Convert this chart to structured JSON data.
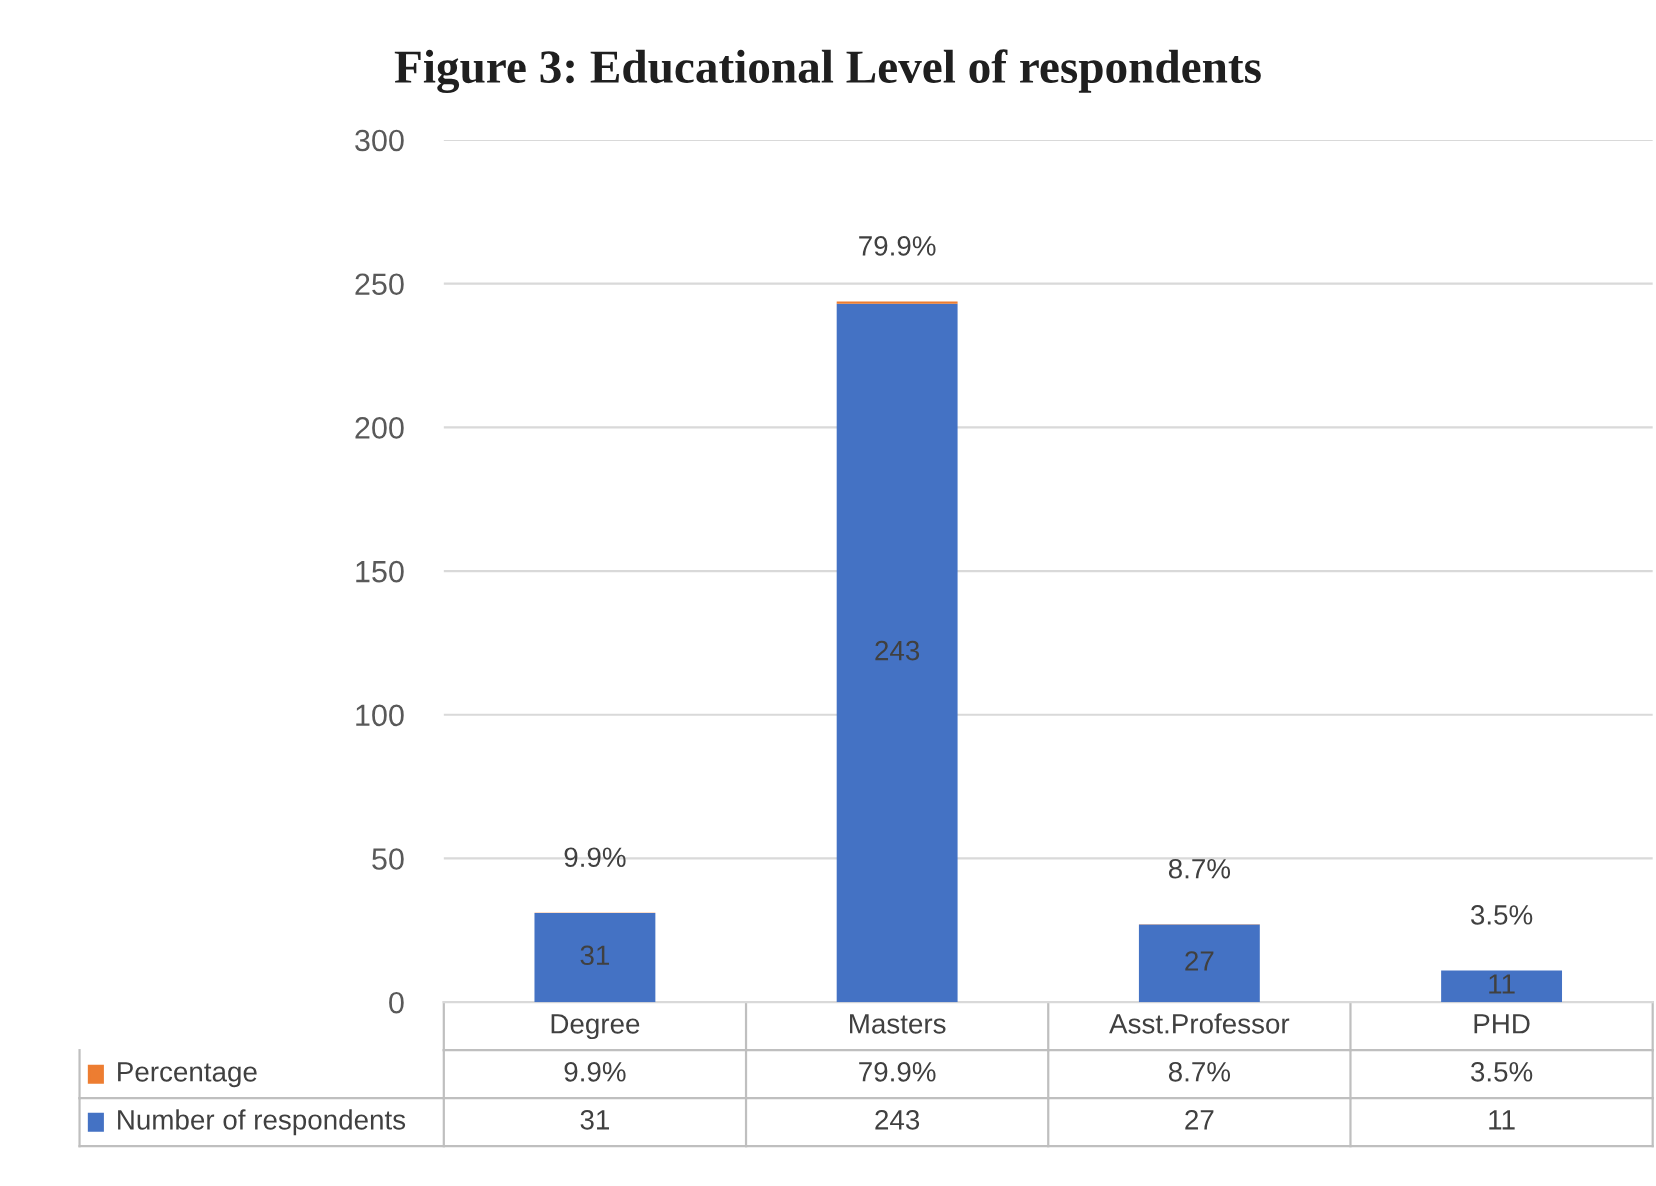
{
  "chart_data": {
    "type": "bar",
    "title": "Figure 3: Educational Level of respondents",
    "categories": [
      "Degree",
      "Masters",
      "Asst.Professor",
      "PHD"
    ],
    "stacked": true,
    "series": [
      {
        "name": "Number of respondents",
        "color": "#4472c4",
        "values": [
          31,
          243,
          27,
          11
        ],
        "value_labels": [
          "31",
          "243",
          "27",
          "11"
        ]
      },
      {
        "name": "Percentage",
        "color": "#ed7d31",
        "values": [
          0.099,
          0.799,
          0.087,
          0.035
        ],
        "value_labels": [
          "9.9%",
          "79.9%",
          "8.7%",
          "3.5%"
        ]
      }
    ],
    "ylim": [
      0,
      300
    ],
    "yticks": [
      0,
      50,
      100,
      150,
      200,
      250,
      300
    ],
    "grid": "y",
    "legend": "bottom"
  }
}
